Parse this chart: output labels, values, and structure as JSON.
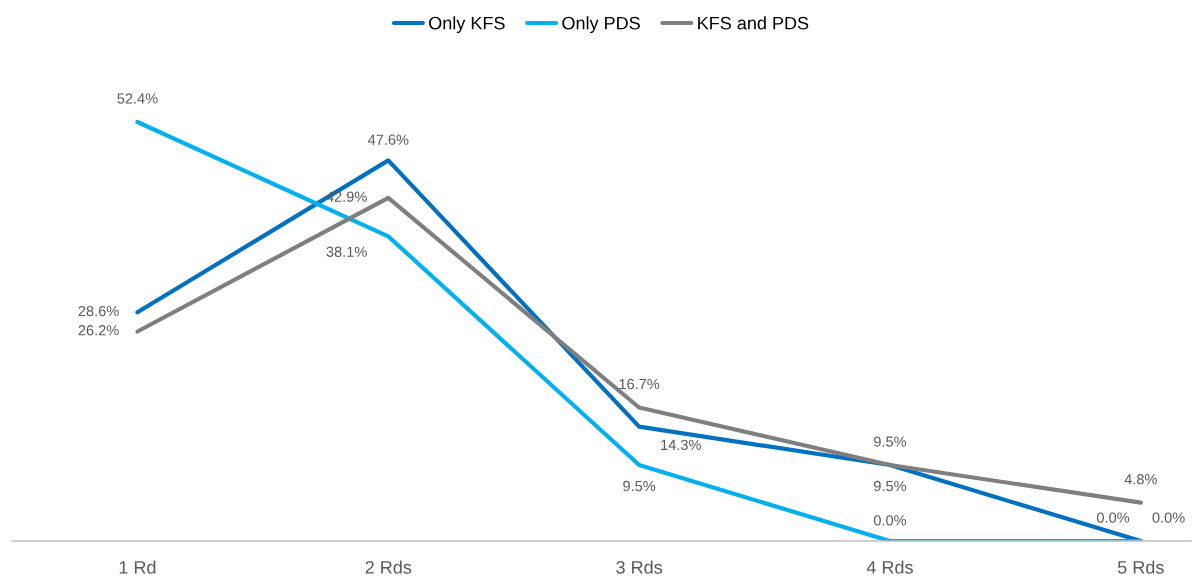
{
  "chart_data": {
    "type": "line",
    "categories": [
      "1 Rd",
      "2 Rds",
      "3 Rds",
      "4 Rds",
      "5 Rds"
    ],
    "series": [
      {
        "name": "Only KFS",
        "color": "#0070c0",
        "values": [
          28.6,
          47.6,
          14.3,
          9.5,
          0.0
        ],
        "value_labels": [
          "28.6%",
          "47.6%",
          "14.3%",
          "9.5%",
          "0.0%"
        ]
      },
      {
        "name": "Only PDS",
        "color": "#00b0f0",
        "values": [
          52.4,
          38.1,
          9.5,
          0.0,
          0.0
        ],
        "value_labels": [
          "52.4%",
          "38.1%",
          "9.5%",
          "0.0%",
          "0.0%"
        ]
      },
      {
        "name": "KFS and PDS",
        "color": "#7f7f7f",
        "values": [
          26.2,
          42.9,
          16.7,
          9.5,
          4.8
        ],
        "value_labels": [
          "26.2%",
          "42.9%",
          "16.7%",
          "9.5%",
          "4.8%"
        ]
      }
    ],
    "legend": "top",
    "grid": false,
    "marker": "none",
    "line_style": "solid"
  }
}
